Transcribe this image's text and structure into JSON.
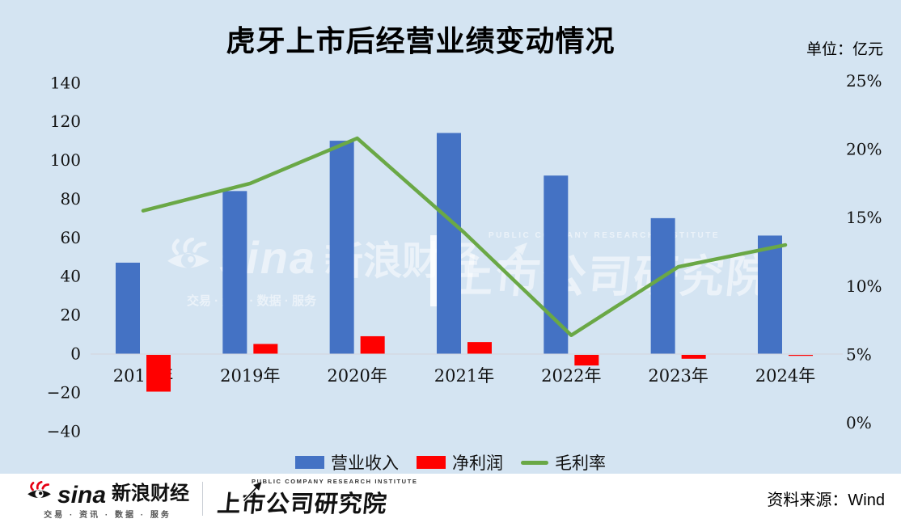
{
  "header": {
    "unit_label": "单位：亿元"
  },
  "chart_data": {
    "type": "bar",
    "subtype": "combo-bar-line",
    "title": "虎牙上市后经营业绩变动情况",
    "categories": [
      "2018年",
      "2019年",
      "2020年",
      "2021年",
      "2022年",
      "2023年",
      "2024年"
    ],
    "series": [
      {
        "name": "营业收入",
        "type": "bar",
        "axis": "left",
        "color": "#4472c4",
        "values": [
          47,
          84,
          110,
          114,
          92,
          70,
          61
        ]
      },
      {
        "name": "净利润",
        "type": "bar",
        "axis": "left",
        "color": "#ff0000",
        "values": [
          -19,
          5,
          9,
          6,
          -5.5,
          -2,
          -0.5
        ]
      },
      {
        "name": "毛利率",
        "type": "line",
        "axis": "right",
        "color": "#6aa846",
        "values": [
          15.5,
          17.5,
          20.8,
          13.9,
          6.4,
          11.4,
          13.0
        ]
      }
    ],
    "left_axis": {
      "ticks": [
        140,
        120,
        100,
        80,
        60,
        40,
        20,
        0,
        -20,
        -40
      ],
      "range": [
        -40,
        140
      ]
    },
    "right_axis": {
      "ticks": [
        "25%",
        "20%",
        "15%",
        "10%",
        "5%",
        "0%"
      ],
      "range": [
        0,
        25
      ]
    },
    "legend_position": "bottom",
    "gridlines": false
  },
  "brand": {
    "sina_latin": "sina",
    "sina_cn": "新浪财经",
    "tagline": "交易 · 资讯 · 数据 · 服务",
    "institute_en": "PUBLIC COMPANY RESEARCH INSTITUTE",
    "institute_cn": "上市公司研究院"
  },
  "footer": {
    "source": "资料来源：Wind"
  }
}
